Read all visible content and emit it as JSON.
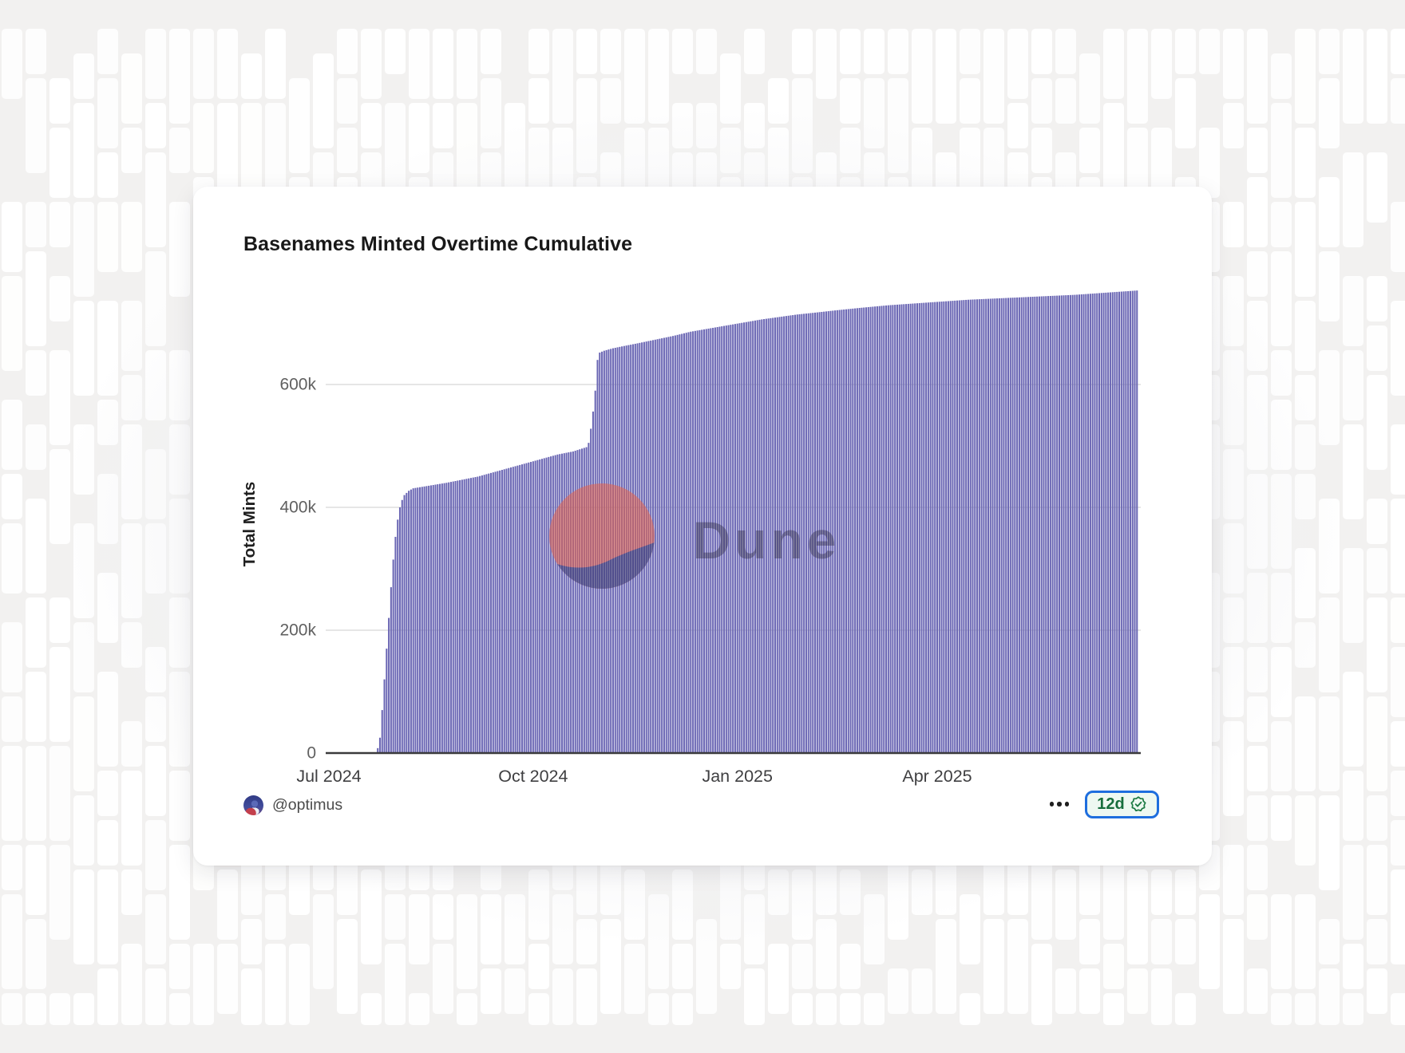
{
  "page": {
    "background_color": "#f2f1f0"
  },
  "card": {
    "title": "Basenames Minted Overtime Cumulative",
    "footer": {
      "author_handle": "@optimus",
      "menu_icon": "ellipsis-horizontal",
      "refresh_badge": {
        "label": "12d",
        "icon": "verified-seal"
      }
    }
  },
  "watermark": {
    "text": "Dune",
    "logo_circle_color": "#ef5e3c",
    "logo_wave_color": "#302e63",
    "text_color": "#221f31"
  },
  "colors": {
    "bar": "#6b67b4",
    "axis_line": "#3a3a3c",
    "gridline": "#e2e2e2",
    "y_tick_text": "#606060",
    "x_tick_text": "#3f3f41",
    "axis_title_text": "#1f1f1f",
    "badge_border": "#1e6ede",
    "badge_background": "#eef8f1",
    "badge_text": "#176e3d",
    "badge_icon": "#1c7a43"
  },
  "chart_data": {
    "type": "bar",
    "title": "Basenames Minted Overtime Cumulative",
    "xlabel": "",
    "ylabel": "Total Mints",
    "legend": false,
    "grid": true,
    "ylim": [
      0,
      780000
    ],
    "y_ticks": [
      {
        "label": "0",
        "value": 0
      },
      {
        "label": "200k",
        "value": 200000
      },
      {
        "label": "400k",
        "value": 400000
      },
      {
        "label": "600k",
        "value": 600000
      }
    ],
    "x_ticks_days_from_jul2024": [
      {
        "label": "Jul 2024",
        "day": 0
      },
      {
        "label": "Oct 2024",
        "day": 92
      },
      {
        "label": "Jan 2025",
        "day": 184
      },
      {
        "label": "Apr 2025",
        "day": 274
      }
    ],
    "bar_days_range": [
      22,
      364
    ],
    "series": [
      {
        "name": "Total Mints (cumulative)",
        "keypoints_day_value": [
          [
            22,
            8000
          ],
          [
            23,
            25000
          ],
          [
            24,
            70000
          ],
          [
            25,
            120000
          ],
          [
            26,
            170000
          ],
          [
            27,
            220000
          ],
          [
            28,
            270000
          ],
          [
            29,
            315000
          ],
          [
            30,
            352000
          ],
          [
            31,
            380000
          ],
          [
            32,
            400000
          ],
          [
            33,
            412000
          ],
          [
            34,
            420000
          ],
          [
            36,
            427000
          ],
          [
            38,
            431000
          ],
          [
            43,
            434000
          ],
          [
            53,
            440000
          ],
          [
            67,
            450000
          ],
          [
            79,
            462000
          ],
          [
            91,
            474000
          ],
          [
            103,
            486000
          ],
          [
            110,
            491000
          ],
          [
            116,
            498000
          ],
          [
            117,
            505000
          ],
          [
            118,
            528000
          ],
          [
            119,
            556000
          ],
          [
            120,
            590000
          ],
          [
            121,
            640000
          ],
          [
            122,
            652000
          ],
          [
            124,
            655000
          ],
          [
            128,
            659000
          ],
          [
            132,
            662000
          ],
          [
            139,
            667000
          ],
          [
            147,
            673000
          ],
          [
            155,
            679000
          ],
          [
            163,
            686000
          ],
          [
            171,
            691000
          ],
          [
            179,
            696000
          ],
          [
            187,
            701000
          ],
          [
            195,
            706000
          ],
          [
            203,
            710000
          ],
          [
            211,
            714000
          ],
          [
            219,
            717000
          ],
          [
            229,
            721000
          ],
          [
            240,
            725000
          ],
          [
            252,
            729000
          ],
          [
            264,
            732000
          ],
          [
            276,
            735000
          ],
          [
            288,
            738000
          ],
          [
            300,
            740000
          ],
          [
            312,
            742000
          ],
          [
            324,
            744000
          ],
          [
            336,
            746000
          ],
          [
            348,
            749000
          ],
          [
            364,
            753000
          ]
        ]
      }
    ]
  }
}
